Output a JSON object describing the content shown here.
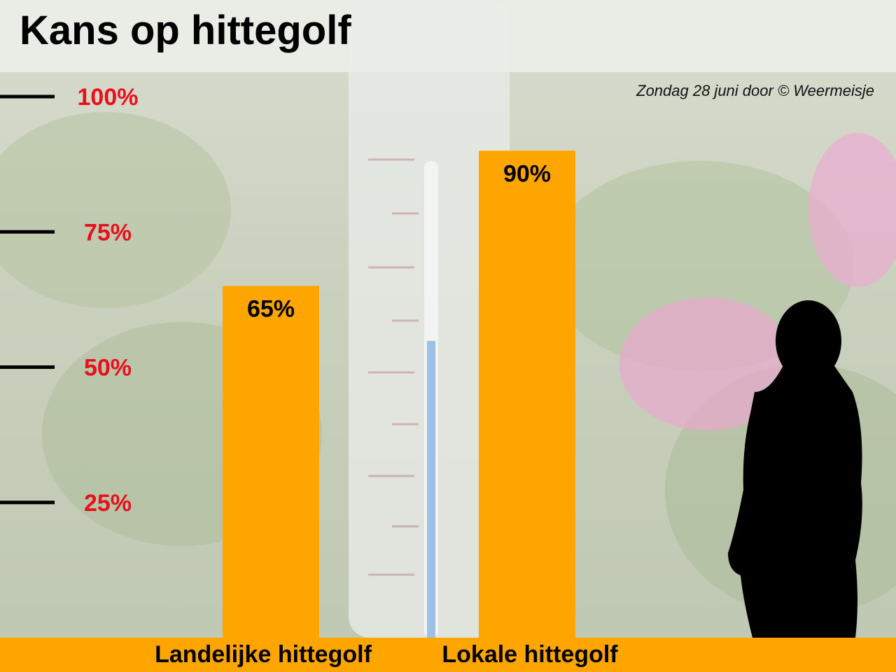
{
  "page": {
    "title": "Kans op hittegolf",
    "byline": "Zondag 28 juni door © Weermeisje"
  },
  "colors": {
    "bar": "#ffa500",
    "tick_label": "#e8101c",
    "tick_line": "#000000"
  },
  "chart_data": {
    "type": "bar",
    "title": "Kans op hittegolf",
    "categories": [
      "Landelijke hittegolf",
      "Lokale hittegolf"
    ],
    "values": [
      65,
      90
    ],
    "value_labels": [
      "65%",
      "90%"
    ],
    "ylim": [
      0,
      100
    ],
    "yticks": [
      25,
      50,
      75,
      100
    ],
    "ytick_labels": [
      "25%",
      "50%",
      "75%",
      "100%"
    ],
    "grid": false,
    "legend": "none"
  }
}
